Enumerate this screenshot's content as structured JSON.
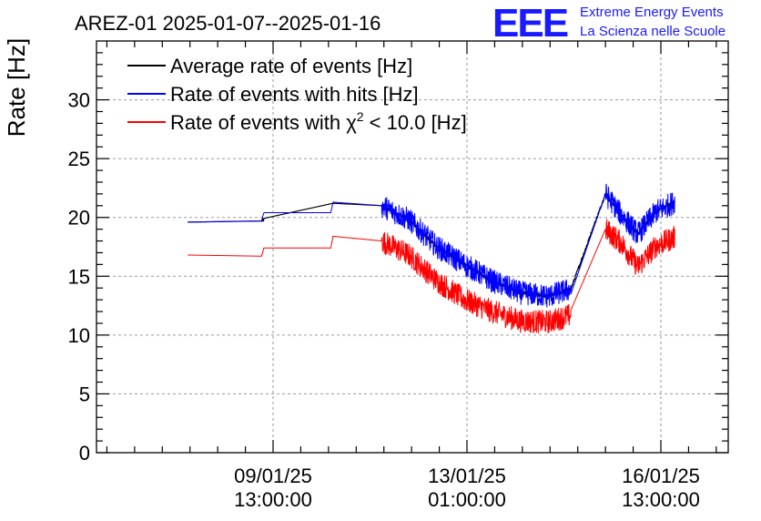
{
  "chart_data": {
    "type": "line",
    "title": "AREZ-01 2025-01-07--2025-01-16",
    "ylabel": "Rate [Hz]",
    "xlabel": "",
    "ylim": [
      0,
      35
    ],
    "xlim_hours_note": "",
    "yticks": [
      0,
      5,
      10,
      15,
      20,
      25,
      30
    ],
    "ytick_labels": [
      "0",
      "5",
      "10",
      "15",
      "20",
      "25",
      "30"
    ],
    "xticks": [
      {
        "date": "09/01/25",
        "time": "13:00:00"
      },
      {
        "date": "13/01/25",
        "time": "01:00:00"
      },
      {
        "date": "16/01/25",
        "time": "13:00:00"
      }
    ],
    "grid": true,
    "legend_position": "top-left",
    "series": [
      {
        "name": "Average rate of events [Hz]",
        "color": "#000000",
        "points": [
          [
            "2025-01-08 00:00",
            19.6
          ],
          [
            "2025-01-09 08:00",
            19.7
          ],
          [
            "2025-01-09 09:00",
            19.8
          ],
          [
            "2025-01-10 15:00",
            21.2
          ],
          [
            "2025-01-11 12:00",
            21.0
          ],
          [
            "2025-01-12 00:00",
            19.8
          ],
          [
            "2025-01-12 12:00",
            17.5
          ],
          [
            "2025-01-13 00:00",
            16.0
          ],
          [
            "2025-01-13 12:00",
            14.6
          ],
          [
            "2025-01-14 00:00",
            13.6
          ],
          [
            "2025-01-14 12:00",
            13.3
          ],
          [
            "2025-01-14 22:00",
            13.9
          ],
          [
            "2025-01-15 13:00",
            22.0
          ],
          [
            "2025-01-15 20:00",
            20.2
          ],
          [
            "2025-01-16 03:00",
            18.6
          ],
          [
            "2025-01-16 11:00",
            20.5
          ],
          [
            "2025-01-16 19:00",
            21.3
          ]
        ]
      },
      {
        "name": "Rate of events with hits [Hz]",
        "color": "#0000ff",
        "points": [
          [
            "2025-01-08 00:00",
            19.6
          ],
          [
            "2025-01-09 08:00",
            19.7
          ],
          [
            "2025-01-09 09:00",
            20.4
          ],
          [
            "2025-01-10 14:00",
            20.4
          ],
          [
            "2025-01-10 15:00",
            21.3
          ],
          [
            "2025-01-11 12:00",
            21.0
          ],
          [
            "2025-01-12 00:00",
            19.8
          ],
          [
            "2025-01-12 12:00",
            17.5
          ],
          [
            "2025-01-13 00:00",
            16.0
          ],
          [
            "2025-01-13 12:00",
            14.6
          ],
          [
            "2025-01-14 00:00",
            13.6
          ],
          [
            "2025-01-14 12:00",
            13.3
          ],
          [
            "2025-01-14 22:00",
            13.9
          ],
          [
            "2025-01-15 13:00",
            22.0
          ],
          [
            "2025-01-15 20:00",
            20.2
          ],
          [
            "2025-01-16 03:00",
            18.6
          ],
          [
            "2025-01-16 11:00",
            20.5
          ],
          [
            "2025-01-16 19:00",
            21.3
          ]
        ]
      },
      {
        "name": "Rate of events with χ² < 10.0 [Hz]",
        "color": "#ff0000",
        "points": [
          [
            "2025-01-08 00:00",
            16.8
          ],
          [
            "2025-01-09 08:00",
            16.7
          ],
          [
            "2025-01-09 09:00",
            17.4
          ],
          [
            "2025-01-10 14:00",
            17.4
          ],
          [
            "2025-01-10 15:00",
            18.4
          ],
          [
            "2025-01-11 12:00",
            18.0
          ],
          [
            "2025-01-12 00:00",
            16.8
          ],
          [
            "2025-01-12 12:00",
            14.6
          ],
          [
            "2025-01-13 00:00",
            13.0
          ],
          [
            "2025-01-13 12:00",
            12.0
          ],
          [
            "2025-01-14 00:00",
            11.2
          ],
          [
            "2025-01-14 12:00",
            11.1
          ],
          [
            "2025-01-14 22:00",
            11.7
          ],
          [
            "2025-01-15 13:00",
            19.0
          ],
          [
            "2025-01-15 20:00",
            17.8
          ],
          [
            "2025-01-16 03:00",
            15.8
          ],
          [
            "2025-01-16 11:00",
            17.6
          ],
          [
            "2025-01-16 19:00",
            18.3
          ]
        ]
      }
    ]
  },
  "legend": {
    "avg": {
      "label": "Average rate of events [Hz]",
      "color": "#000000"
    },
    "hits": {
      "label": "Rate of events with hits [Hz]",
      "color": "#0000ff"
    },
    "chi_prefix": "Rate of events with χ",
    "chi_sup": "2",
    "chi_suffix": " < 10.0 [Hz]",
    "chi_color": "#ff0000"
  },
  "logo": {
    "mark": "EEE",
    "line1": "Extreme Energy Events",
    "line2": "La Scienza nelle Scuole",
    "color": "#1a1aff"
  }
}
